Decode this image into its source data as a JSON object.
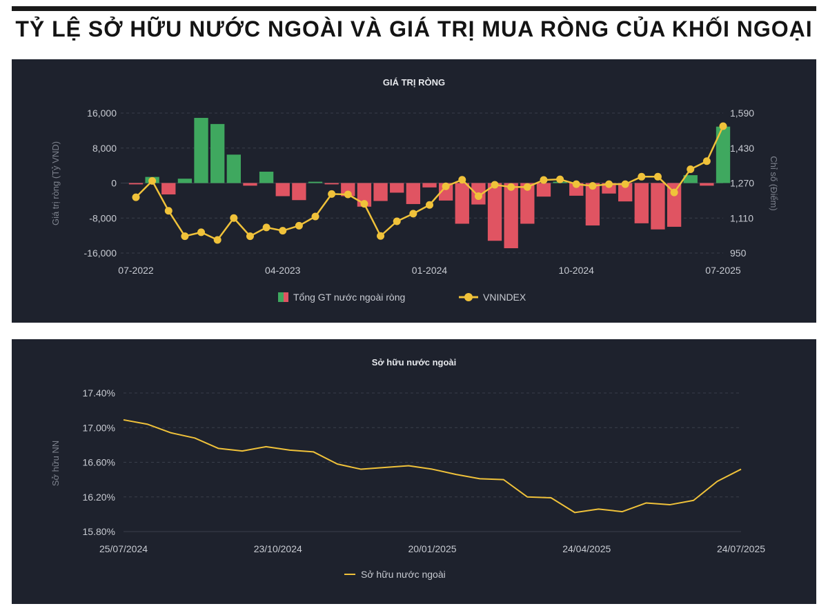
{
  "page": {
    "title": "TỶ LỆ SỞ HỮU NƯỚC NGOÀI VÀ GIÁ TRỊ MUA RÒNG CỦA KHỐI NGOẠI"
  },
  "colors": {
    "panel_bg": "#1e222d",
    "bar_positive": "#3fa85f",
    "bar_negative": "#e05462",
    "line": "#f0c23a",
    "grid": "#3a3f4b",
    "text": "#c8cbd2"
  },
  "chart_data": [
    {
      "type": "bar",
      "title": "GIÁ TRỊ RÒNG",
      "ylabel": "Giá trị ròng (Tỷ VND)",
      "y2label": "Chỉ số (Điểm)",
      "ylim": [
        -16000,
        16000
      ],
      "y2lim": [
        950,
        1590
      ],
      "yticks": [
        "16,000",
        "8,000",
        "0",
        "-8,000",
        "-16,000"
      ],
      "y2ticks": [
        "1,590",
        "1,430",
        "1,270",
        "1,110",
        "950"
      ],
      "xticks": [
        "07-2022",
        "04-2023",
        "01-2024",
        "10-2024",
        "07-2025"
      ],
      "grid": true,
      "legend_position": "bottom",
      "categories": [
        "07-2022",
        "08-2022",
        "09-2022",
        "10-2022",
        "11-2022",
        "12-2022",
        "01-2023",
        "02-2023",
        "03-2023",
        "04-2023",
        "05-2023",
        "06-2023",
        "07-2023",
        "08-2023",
        "09-2023",
        "10-2023",
        "11-2023",
        "12-2023",
        "01-2024",
        "02-2024",
        "03-2024",
        "04-2024",
        "05-2024",
        "06-2024",
        "07-2024",
        "08-2024",
        "09-2024",
        "10-2024",
        "11-2024",
        "12-2024",
        "01-2025",
        "02-2025",
        "03-2025",
        "04-2025",
        "05-2025",
        "06-2025",
        "07-2025"
      ],
      "series": [
        {
          "name": "Tổng GT nước ngoài ròng",
          "type": "bar",
          "values": [
            -300,
            1400,
            -2600,
            1000,
            14900,
            13500,
            6500,
            -600,
            2600,
            -3000,
            -3900,
            300,
            -300,
            -3000,
            -5400,
            -4100,
            -2200,
            -4800,
            -1000,
            -4000,
            -9300,
            -4900,
            -13200,
            -14900,
            -9300,
            -3100,
            300,
            -2900,
            -9700,
            -2400,
            -4200,
            -9200,
            -10600,
            -10000,
            1800,
            -600,
            12900
          ]
        },
        {
          "name": "VNINDEX",
          "type": "line",
          "values": [
            1205,
            1280,
            1143,
            1027,
            1045,
            1010,
            1110,
            1027,
            1067,
            1052,
            1075,
            1117,
            1220,
            1218,
            1175,
            1028,
            1095,
            1130,
            1170,
            1255,
            1285,
            1210,
            1262,
            1252,
            1252,
            1284,
            1287,
            1265,
            1257,
            1265,
            1265,
            1299,
            1299,
            1227,
            1333,
            1370,
            1530
          ]
        }
      ]
    },
    {
      "type": "line",
      "title": "Sở hữu nước ngoài",
      "ylabel": "Sở hữu NN",
      "ylim": [
        15.8,
        17.4
      ],
      "yticks": [
        "17.40%",
        "17.00%",
        "16.60%",
        "16.20%",
        "15.80%"
      ],
      "xticks": [
        "25/07/2024",
        "23/10/2024",
        "20/01/2025",
        "24/04/2025",
        "24/07/2025"
      ],
      "grid": true,
      "legend_position": "bottom",
      "x": [
        "25/07/2024",
        "08/08/2024",
        "22/08/2024",
        "05/09/2024",
        "19/09/2024",
        "03/10/2024",
        "17/10/2024",
        "31/10/2024",
        "14/11/2024",
        "28/11/2024",
        "12/12/2024",
        "26/12/2024",
        "09/01/2025",
        "23/01/2025",
        "06/02/2025",
        "20/02/2025",
        "06/03/2025",
        "20/03/2025",
        "03/04/2025",
        "17/04/2025",
        "01/05/2025",
        "15/05/2025",
        "29/05/2025",
        "12/06/2025",
        "26/06/2025",
        "10/07/2025",
        "24/07/2025"
      ],
      "series": [
        {
          "name": "Sở hữu nước ngoài",
          "values": [
            17.09,
            17.04,
            16.94,
            16.88,
            16.76,
            16.73,
            16.78,
            16.74,
            16.72,
            16.58,
            16.52,
            16.54,
            16.56,
            16.52,
            16.46,
            16.41,
            16.4,
            16.2,
            16.19,
            16.02,
            16.06,
            16.03,
            16.13,
            16.11,
            16.16,
            16.38,
            16.52
          ]
        }
      ]
    }
  ]
}
